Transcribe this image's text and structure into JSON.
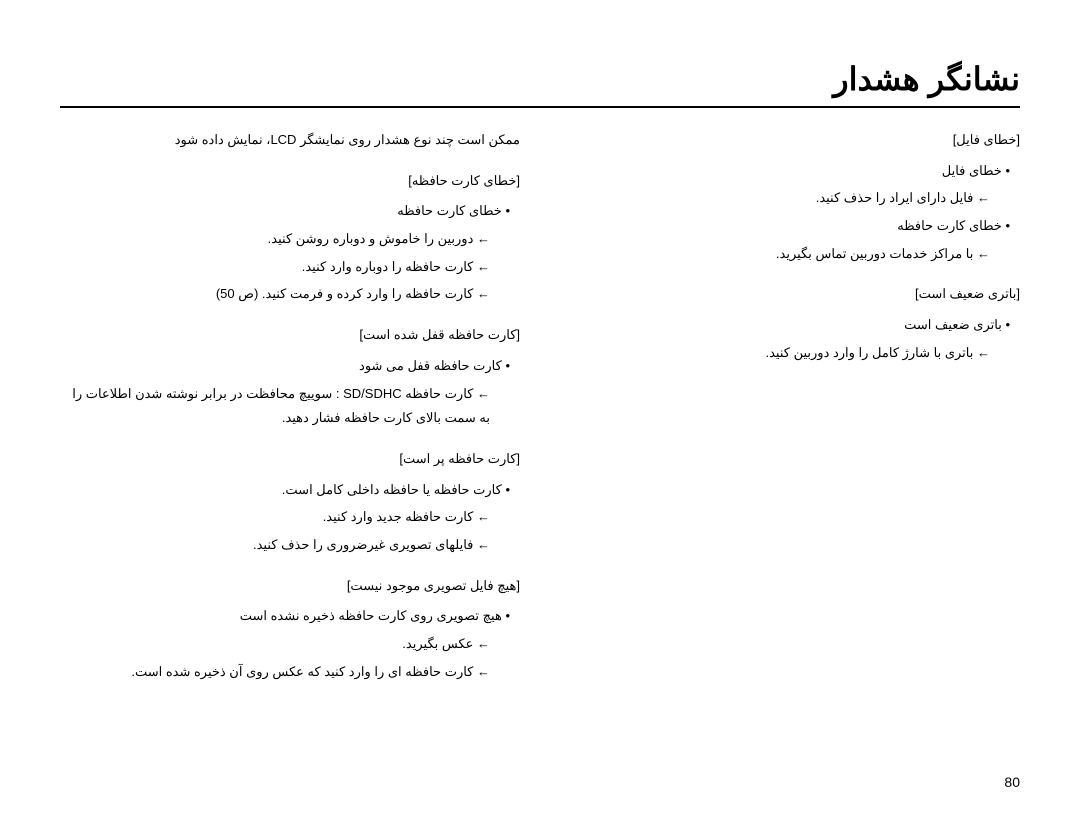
{
  "title": "نشانگر هشدار",
  "pageNumber": "80",
  "rightColumn": {
    "intro": "ممکن است چند نوع هشدار روی نمایشگر LCD، نمایش داده شود",
    "sections": [
      {
        "header": "[خطای کارت حافظه]",
        "bullet": "خطای کارت حافظه",
        "subs": [
          "دوربین را خاموش و دوباره روشن کنید.",
          "کارت حافظه را دوباره وارد کنید.",
          "کارت حافظه را وارد کرده و فرمت کنید. (ص 50)"
        ]
      },
      {
        "header": "[کارت حافظه قفل شده است]",
        "bullet": "کارت حافظه قفل می شود",
        "subs": [
          "کارت حافظه SD/SDHC : سوییچ محافظت در برابر نوشته شدن اطلاعات را به سمت بالای کارت حافظه فشار دهید."
        ]
      },
      {
        "header": "[کارت حافظه پر است]",
        "bullet": "کارت حافظه یا حافظه داخلی کامل است.",
        "subs": [
          "کارت حافظه جدید وارد کنید.",
          "فایلهای تصویری غیرضروری را حذف کنید."
        ]
      },
      {
        "header": "[هیچ فایل تصویری موجود نیست]",
        "bullet": "هیچ تصویری روی کارت حافظه ذخیره نشده است",
        "subs": [
          "عکس بگیرید.",
          "کارت حافظه ای را وارد کنید که عکس روی آن ذخیره شده است."
        ]
      }
    ]
  },
  "leftColumn": {
    "sections": [
      {
        "header": "[خطای فایل]",
        "items": [
          {
            "type": "bullet",
            "text": "خطای فایل"
          },
          {
            "type": "sub",
            "text": "فایل دارای ایراد را حذف کنید."
          },
          {
            "type": "bullet",
            "text": "خطای کارت حافظه"
          },
          {
            "type": "sub",
            "text": "با مراکز خدمات دوربین تماس بگیرید."
          }
        ]
      },
      {
        "header": "[باتری ضعیف است]",
        "items": [
          {
            "type": "bullet",
            "text": "باتری ضعیف است"
          },
          {
            "type": "sub",
            "text": "باتری با شارژ کامل را وارد دوربین کنید."
          }
        ]
      }
    ]
  }
}
